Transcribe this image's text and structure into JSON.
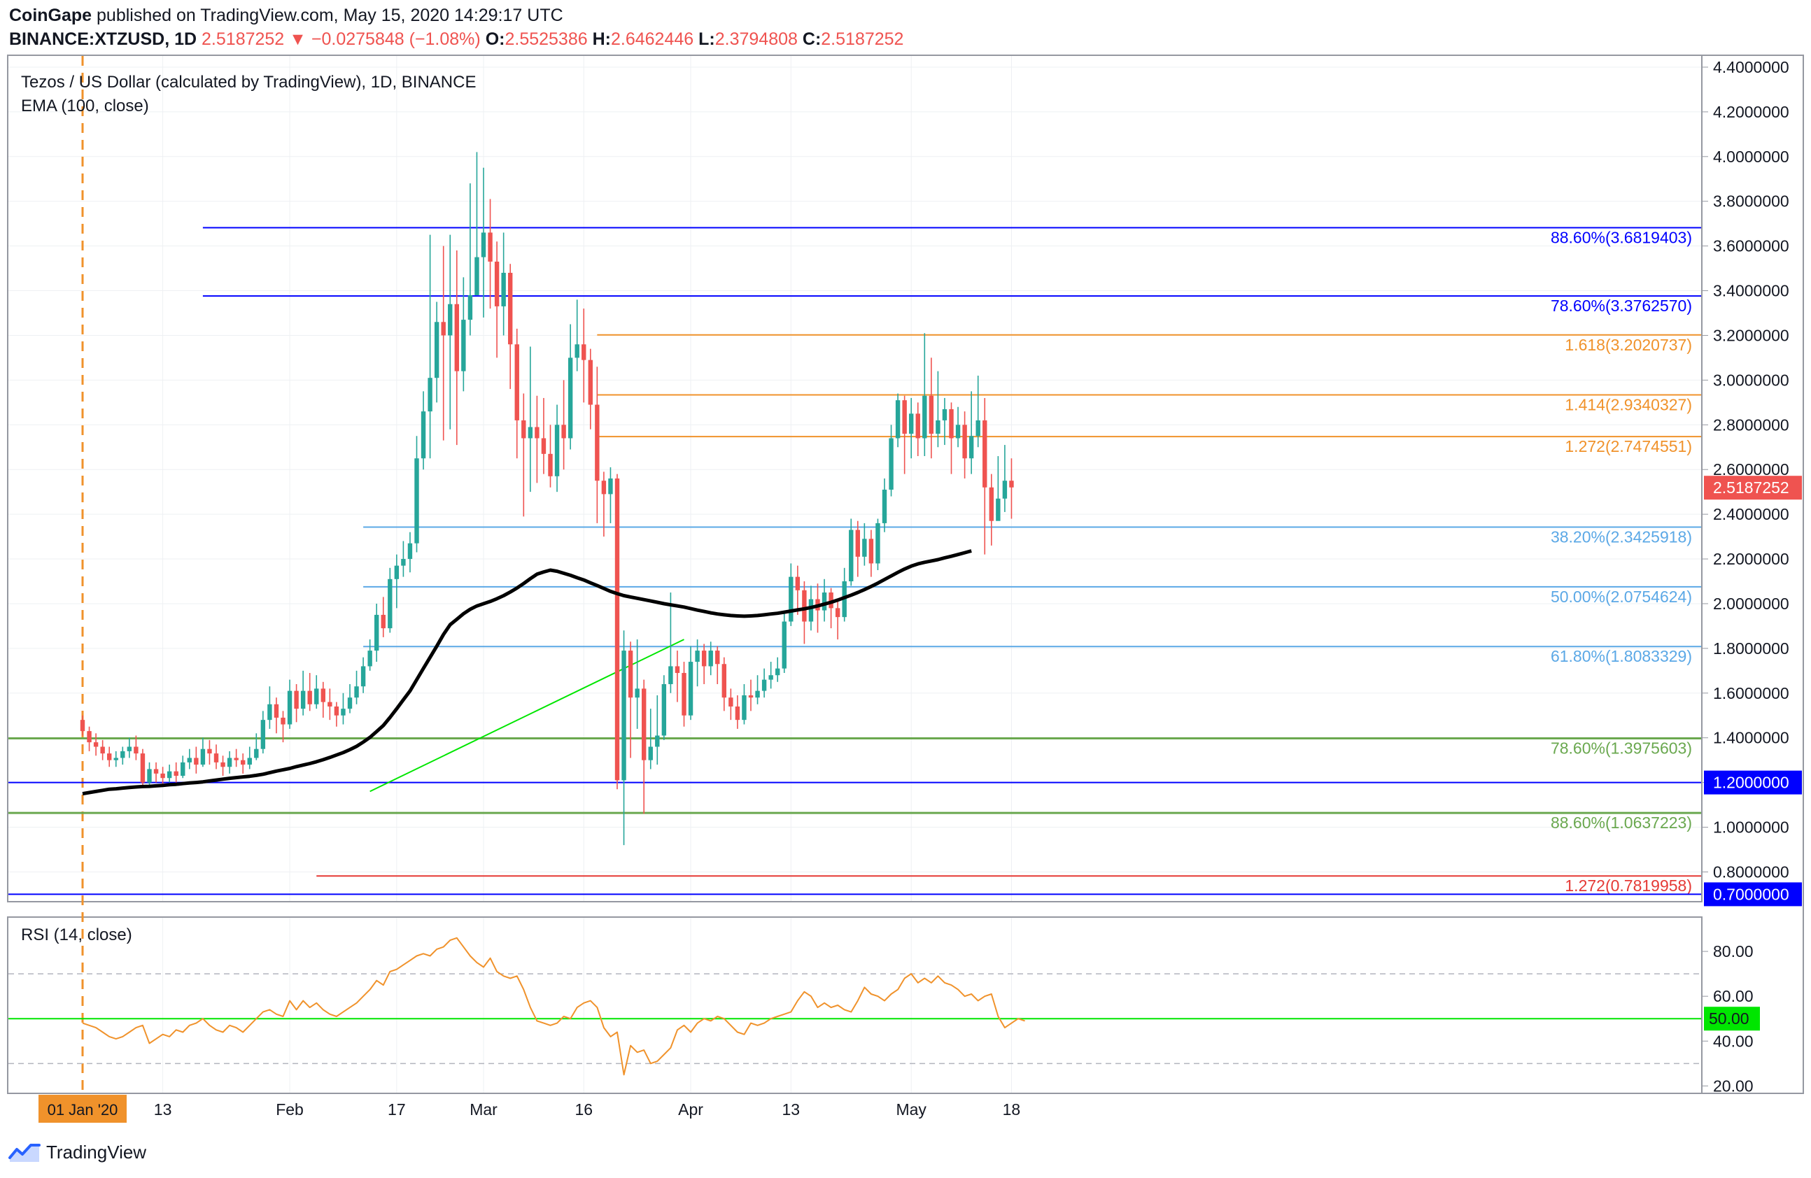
{
  "header": {
    "publisher": "CoinGape",
    "published_text": "published on TradingView.com, May 15, 2020 14:29:17 UTC",
    "symbol": "BINANCE:XTZUSD, 1D",
    "last": "2.5187252",
    "change_icon": "down-triangle-icon",
    "change": "−0.0275848 (−1.08%)",
    "o_label": "O:",
    "o_value": "2.5525386",
    "h_label": "H:",
    "h_value": "2.6462446",
    "l_label": "L:",
    "l_value": "2.3794808",
    "c_label": "C:",
    "c_value": "2.5187252"
  },
  "colors": {
    "up": "#26a69a",
    "down": "#ef5350",
    "ema": "#000000",
    "fib_blue": "#0000ff",
    "fib_orange": "#f0922b",
    "fib_light_blue": "#5ba8e6",
    "fib_green": "#6aa84f",
    "fib_red": "#e53935",
    "trendline": "#00e600",
    "rsi_line": "#f0922b",
    "rsi_mid": "#00e600"
  },
  "branding": {
    "name": "TradingView",
    "icon": "tradingview-logo-icon"
  },
  "chart_data": [
    {
      "type": "candlestick",
      "title": "Tezos / US Dollar (calculated by TradingView), 1D, BINANCE",
      "indicator": "EMA (100, close)",
      "y_axis_ticks": [
        "0.8000000",
        "1.0000000",
        "1.2000000",
        "1.4000000",
        "1.6000000",
        "1.8000000",
        "2.0000000",
        "2.2000000",
        "2.4000000",
        "2.6000000",
        "2.8000000",
        "3.0000000",
        "3.2000000",
        "3.4000000",
        "3.6000000",
        "3.8000000",
        "4.0000000",
        "4.2000000",
        "4.4000000"
      ],
      "ylim": [
        0.67,
        4.45
      ],
      "x_axis_ticks": [
        "13",
        "Feb",
        "17",
        "Mar",
        "16",
        "Apr",
        "13",
        "May",
        "18"
      ],
      "x_highlight_label": "01 Jan '20",
      "price_badges": [
        {
          "label": "2.5187252",
          "value": 2.5187252,
          "color": "#ef5350"
        },
        {
          "label": "1.2000000",
          "value": 1.2,
          "color": "#0000ff"
        },
        {
          "label": "0.7000000",
          "value": 0.7,
          "color": "#0000ff"
        }
      ],
      "levels": [
        {
          "label": "88.60%(3.6819403)",
          "value": 3.6819403,
          "color": "#0000ff",
          "start_day": 18
        },
        {
          "label": "78.60%(3.3762570)",
          "value": 3.376257,
          "color": "#0000ff",
          "start_day": 18
        },
        {
          "label": "1.618(3.2020737)",
          "value": 3.2020737,
          "color": "#f0922b",
          "start_day": 77
        },
        {
          "label": "1.414(2.9340327)",
          "value": 2.9340327,
          "color": "#f0922b",
          "start_day": 77
        },
        {
          "label": "1.272(2.7474551)",
          "value": 2.7474551,
          "color": "#f0922b",
          "start_day": 77
        },
        {
          "label": "38.20%(2.3425918)",
          "value": 2.3425918,
          "color": "#5ba8e6",
          "start_day": 42
        },
        {
          "label": "50.00%(2.0754624)",
          "value": 2.0754624,
          "color": "#5ba8e6",
          "start_day": 42
        },
        {
          "label": "61.80%(1.8083329)",
          "value": 1.8083329,
          "color": "#5ba8e6",
          "start_day": 42
        },
        {
          "label": "78.60%(1.3975603)",
          "value": 1.3975603,
          "color": "#6aa84f",
          "start_day": -10
        },
        {
          "label": "88.60%(1.0637223)",
          "value": 1.0637223,
          "color": "#6aa84f",
          "start_day": -10
        },
        {
          "label": "1.272(0.7819958)",
          "value": 0.7819958,
          "color": "#e53935",
          "start_day": 35
        },
        {
          "label": "",
          "value": 1.2,
          "color": "#0000ff",
          "start_day": -10
        },
        {
          "label": "",
          "value": 0.7,
          "color": "#0000ff",
          "start_day": -10
        }
      ],
      "trendline": {
        "from": [
          43,
          1.16
        ],
        "to": [
          90,
          1.84
        ]
      },
      "candles": [
        [
          1.48,
          1.43,
          1.5,
          1.41
        ],
        [
          1.43,
          1.38,
          1.45,
          1.34
        ],
        [
          1.38,
          1.36,
          1.42,
          1.32
        ],
        [
          1.36,
          1.33,
          1.39,
          1.3
        ],
        [
          1.33,
          1.3,
          1.36,
          1.27
        ],
        [
          1.3,
          1.31,
          1.34,
          1.27
        ],
        [
          1.31,
          1.34,
          1.36,
          1.28
        ],
        [
          1.34,
          1.36,
          1.4,
          1.31
        ],
        [
          1.36,
          1.33,
          1.41,
          1.3
        ],
        [
          1.33,
          1.2,
          1.35,
          1.18
        ],
        [
          1.2,
          1.26,
          1.29,
          1.18
        ],
        [
          1.26,
          1.24,
          1.29,
          1.2
        ],
        [
          1.24,
          1.22,
          1.27,
          1.19
        ],
        [
          1.22,
          1.25,
          1.28,
          1.2
        ],
        [
          1.25,
          1.23,
          1.29,
          1.2
        ],
        [
          1.23,
          1.29,
          1.32,
          1.22
        ],
        [
          1.29,
          1.31,
          1.35,
          1.26
        ],
        [
          1.31,
          1.28,
          1.36,
          1.24
        ],
        [
          1.28,
          1.35,
          1.4,
          1.27
        ],
        [
          1.35,
          1.33,
          1.39,
          1.28
        ],
        [
          1.33,
          1.29,
          1.37,
          1.26
        ],
        [
          1.29,
          1.27,
          1.32,
          1.23
        ],
        [
          1.27,
          1.31,
          1.34,
          1.24
        ],
        [
          1.31,
          1.3,
          1.35,
          1.27
        ],
        [
          1.3,
          1.28,
          1.33,
          1.24
        ],
        [
          1.28,
          1.31,
          1.36,
          1.26
        ],
        [
          1.31,
          1.35,
          1.42,
          1.3
        ],
        [
          1.35,
          1.48,
          1.52,
          1.33
        ],
        [
          1.48,
          1.55,
          1.63,
          1.44
        ],
        [
          1.55,
          1.49,
          1.58,
          1.42
        ],
        [
          1.49,
          1.46,
          1.52,
          1.38
        ],
        [
          1.46,
          1.61,
          1.66,
          1.44
        ],
        [
          1.61,
          1.53,
          1.64,
          1.47
        ],
        [
          1.53,
          1.61,
          1.7,
          1.5
        ],
        [
          1.61,
          1.55,
          1.69,
          1.52
        ],
        [
          1.55,
          1.62,
          1.68,
          1.53
        ],
        [
          1.62,
          1.56,
          1.65,
          1.49
        ],
        [
          1.56,
          1.54,
          1.62,
          1.48
        ],
        [
          1.54,
          1.5,
          1.56,
          1.45
        ],
        [
          1.5,
          1.53,
          1.6,
          1.46
        ],
        [
          1.53,
          1.58,
          1.64,
          1.51
        ],
        [
          1.58,
          1.63,
          1.7,
          1.55
        ],
        [
          1.63,
          1.72,
          1.76,
          1.6
        ],
        [
          1.72,
          1.79,
          1.84,
          1.7
        ],
        [
          1.79,
          1.95,
          2.0,
          1.74
        ],
        [
          1.95,
          1.89,
          2.03,
          1.85
        ],
        [
          1.89,
          2.11,
          2.16,
          1.87
        ],
        [
          2.11,
          2.17,
          2.22,
          1.98
        ],
        [
          2.17,
          2.2,
          2.28,
          2.12
        ],
        [
          2.2,
          2.27,
          2.32,
          2.14
        ],
        [
          2.27,
          2.65,
          2.75,
          2.23
        ],
        [
          2.65,
          2.86,
          2.95,
          2.6
        ],
        [
          2.86,
          3.01,
          3.65,
          2.65
        ],
        [
          3.01,
          3.26,
          3.35,
          2.9
        ],
        [
          3.26,
          3.2,
          3.6,
          2.73
        ],
        [
          3.2,
          3.34,
          3.65,
          2.78
        ],
        [
          3.34,
          3.04,
          3.58,
          2.71
        ],
        [
          3.04,
          3.27,
          3.46,
          2.95
        ],
        [
          3.27,
          3.38,
          3.88,
          3.2
        ],
        [
          3.38,
          3.55,
          4.02,
          3.4
        ],
        [
          3.55,
          3.66,
          3.95,
          3.28
        ],
        [
          3.66,
          3.53,
          3.81,
          3.32
        ],
        [
          3.53,
          3.33,
          3.62,
          3.1
        ],
        [
          3.33,
          3.48,
          3.66,
          3.2
        ],
        [
          3.48,
          3.16,
          3.52,
          2.96
        ],
        [
          3.16,
          2.82,
          3.23,
          2.65
        ],
        [
          2.82,
          2.74,
          2.94,
          2.39
        ],
        [
          2.74,
          2.79,
          3.15,
          2.5
        ],
        [
          2.79,
          2.74,
          2.93,
          2.54
        ],
        [
          2.74,
          2.67,
          2.92,
          2.58
        ],
        [
          2.67,
          2.57,
          2.8,
          2.52
        ],
        [
          2.57,
          2.8,
          2.89,
          2.5
        ],
        [
          2.8,
          2.74,
          3.0,
          2.6
        ],
        [
          2.74,
          3.1,
          3.25,
          2.69
        ],
        [
          3.1,
          3.16,
          3.36,
          3.04
        ],
        [
          3.16,
          3.09,
          3.32,
          2.9
        ],
        [
          3.09,
          2.89,
          3.14,
          2.78
        ],
        [
          2.89,
          2.55,
          3.06,
          2.36
        ],
        [
          2.55,
          2.49,
          2.59,
          2.3
        ],
        [
          2.49,
          2.56,
          2.61,
          2.36
        ],
        [
          2.56,
          1.21,
          2.58,
          1.17
        ],
        [
          1.21,
          1.79,
          1.88,
          0.92
        ],
        [
          1.79,
          1.58,
          1.83,
          1.31
        ],
        [
          1.58,
          1.62,
          1.84,
          1.44
        ],
        [
          1.62,
          1.3,
          1.66,
          1.06
        ],
        [
          1.3,
          1.36,
          1.53,
          1.26
        ],
        [
          1.36,
          1.41,
          1.59,
          1.28
        ],
        [
          1.41,
          1.64,
          1.68,
          1.39
        ],
        [
          1.64,
          1.72,
          2.05,
          1.6
        ],
        [
          1.72,
          1.69,
          1.79,
          1.56
        ],
        [
          1.69,
          1.5,
          1.74,
          1.45
        ],
        [
          1.5,
          1.74,
          1.81,
          1.48
        ],
        [
          1.74,
          1.79,
          1.84,
          1.63
        ],
        [
          1.79,
          1.72,
          1.82,
          1.64
        ],
        [
          1.72,
          1.79,
          1.83,
          1.68
        ],
        [
          1.79,
          1.73,
          1.81,
          1.64
        ],
        [
          1.73,
          1.58,
          1.76,
          1.52
        ],
        [
          1.58,
          1.54,
          1.62,
          1.48
        ],
        [
          1.54,
          1.48,
          1.59,
          1.44
        ],
        [
          1.48,
          1.59,
          1.64,
          1.46
        ],
        [
          1.59,
          1.58,
          1.66,
          1.52
        ],
        [
          1.58,
          1.61,
          1.68,
          1.55
        ],
        [
          1.61,
          1.66,
          1.71,
          1.58
        ],
        [
          1.66,
          1.68,
          1.74,
          1.62
        ],
        [
          1.68,
          1.71,
          1.76,
          1.65
        ],
        [
          1.71,
          1.92,
          1.96,
          1.69
        ],
        [
          1.92,
          2.12,
          2.18,
          1.9
        ],
        [
          2.12,
          2.06,
          2.17,
          1.95
        ],
        [
          2.06,
          1.92,
          2.1,
          1.82
        ],
        [
          1.92,
          2.02,
          2.08,
          1.88
        ],
        [
          2.02,
          1.97,
          2.09,
          1.87
        ],
        [
          1.97,
          2.05,
          2.11,
          1.92
        ],
        [
          2.05,
          1.98,
          2.07,
          1.89
        ],
        [
          1.98,
          1.94,
          2.02,
          1.84
        ],
        [
          1.94,
          2.1,
          2.16,
          1.92
        ],
        [
          2.1,
          2.33,
          2.38,
          2.08
        ],
        [
          2.33,
          2.21,
          2.37,
          2.12
        ],
        [
          2.21,
          2.29,
          2.36,
          2.17
        ],
        [
          2.29,
          2.18,
          2.33,
          2.12
        ],
        [
          2.18,
          2.36,
          2.38,
          2.15
        ],
        [
          2.36,
          2.51,
          2.56,
          2.32
        ],
        [
          2.51,
          2.74,
          2.8,
          2.48
        ],
        [
          2.74,
          2.91,
          2.94,
          2.7
        ],
        [
          2.91,
          2.76,
          2.93,
          2.58
        ],
        [
          2.76,
          2.85,
          2.92,
          2.65
        ],
        [
          2.85,
          2.74,
          2.9,
          2.66
        ],
        [
          2.74,
          2.93,
          3.21,
          2.66
        ],
        [
          2.93,
          2.76,
          3.1,
          2.65
        ],
        [
          2.76,
          2.82,
          3.04,
          2.7
        ],
        [
          2.82,
          2.87,
          2.92,
          2.71
        ],
        [
          2.87,
          2.74,
          2.9,
          2.58
        ],
        [
          2.74,
          2.8,
          2.88,
          2.7
        ],
        [
          2.8,
          2.65,
          2.86,
          2.56
        ],
        [
          2.65,
          2.75,
          2.95,
          2.58
        ],
        [
          2.75,
          2.82,
          3.02,
          2.7
        ],
        [
          2.82,
          2.52,
          2.92,
          2.22
        ],
        [
          2.52,
          2.37,
          2.58,
          2.26
        ],
        [
          2.37,
          2.47,
          2.66,
          2.4
        ],
        [
          2.47,
          2.55,
          2.71,
          2.41
        ],
        [
          2.55,
          2.52,
          2.65,
          2.38
        ]
      ],
      "ema": [
        1.15,
        1.155,
        1.16,
        1.165,
        1.17,
        1.172,
        1.175,
        1.178,
        1.18,
        1.182,
        1.183,
        1.185,
        1.187,
        1.19,
        1.192,
        1.195,
        1.198,
        1.2,
        1.203,
        1.207,
        1.211,
        1.215,
        1.219,
        1.222,
        1.225,
        1.228,
        1.232,
        1.237,
        1.244,
        1.251,
        1.257,
        1.263,
        1.271,
        1.278,
        1.285,
        1.293,
        1.302,
        1.312,
        1.323,
        1.334,
        1.347,
        1.362,
        1.381,
        1.402,
        1.428,
        1.455,
        1.491,
        1.53,
        1.57,
        1.61,
        1.66,
        1.71,
        1.76,
        1.81,
        1.862,
        1.906,
        1.93,
        1.955,
        1.975,
        1.99,
        2.0,
        2.01,
        2.022,
        2.036,
        2.052,
        2.07,
        2.09,
        2.112,
        2.132,
        2.142,
        2.15,
        2.145,
        2.136,
        2.127,
        2.116,
        2.106,
        2.093,
        2.081,
        2.068,
        2.055,
        2.045,
        2.036,
        2.03,
        2.024,
        2.018,
        2.012,
        2.006,
        2.0,
        1.995,
        1.99,
        1.985,
        1.978,
        1.971,
        1.965,
        1.959,
        1.954,
        1.95,
        1.947,
        1.945,
        1.944,
        1.945,
        1.947,
        1.95,
        1.954,
        1.957,
        1.962,
        1.967,
        1.972,
        1.977,
        1.983,
        1.99,
        1.998,
        2.006,
        2.016,
        2.027,
        2.038,
        2.05,
        2.063,
        2.077,
        2.092,
        2.108,
        2.124,
        2.14,
        2.155,
        2.168,
        2.178,
        2.185,
        2.191,
        2.197,
        2.205,
        2.212,
        2.22,
        2.228,
        2.236
      ]
    },
    {
      "type": "line",
      "title": "RSI (14, close)",
      "y_axis_ticks": [
        "20.00",
        "40.00",
        "60.00",
        "80.00"
      ],
      "ylim": [
        17,
        95
      ],
      "bands": [
        30,
        70
      ],
      "midline_label": "50.00",
      "midline": 50,
      "values": [
        48,
        47,
        46,
        44,
        42,
        41,
        42,
        44,
        46,
        47,
        39,
        41,
        43,
        42,
        45,
        44,
        47,
        48,
        50,
        47,
        45,
        44,
        47,
        46,
        44,
        47,
        50,
        53,
        54,
        52,
        51,
        58,
        54,
        58,
        55,
        57,
        54,
        52,
        51,
        53,
        55,
        57,
        60,
        63,
        67,
        65,
        71,
        72,
        74,
        76,
        78,
        79,
        78,
        81,
        82,
        85,
        86,
        82,
        78,
        75,
        73,
        77,
        71,
        69,
        68,
        69,
        63,
        55,
        49,
        48,
        47,
        48,
        51,
        50,
        55,
        57,
        58,
        55,
        46,
        42,
        44,
        25,
        38,
        35,
        36,
        30,
        31,
        34,
        37,
        45,
        47,
        44,
        48,
        50,
        49,
        51,
        50,
        47,
        44,
        43,
        48,
        47,
        48,
        50,
        51,
        52,
        53,
        58,
        62,
        60,
        55,
        57,
        55,
        56,
        54,
        53,
        58,
        64,
        61,
        60,
        58,
        61,
        63,
        68,
        70,
        66,
        68,
        66,
        69,
        66,
        65,
        63,
        60,
        61,
        58,
        60,
        61,
        51,
        46,
        48,
        50,
        49
      ]
    }
  ]
}
